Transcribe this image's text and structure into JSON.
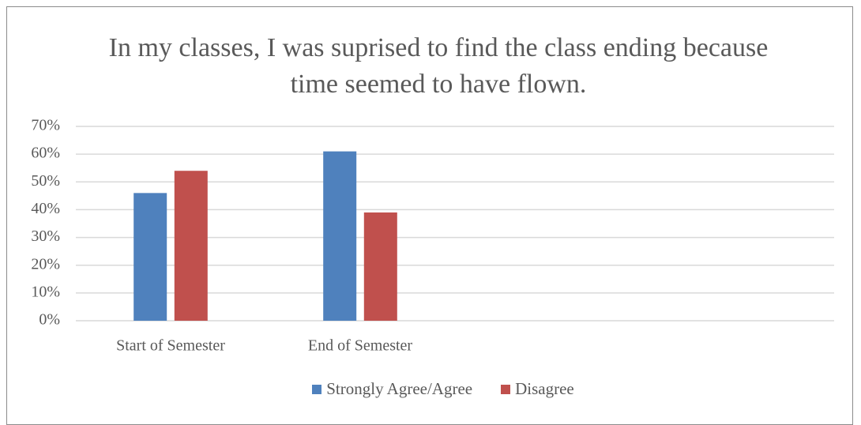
{
  "chart_data": {
    "type": "bar",
    "title": "In my classes, I was suprised to find the class ending because time seemed to have flown.",
    "categories": [
      "Start of Semester",
      "End of Semester",
      null,
      null
    ],
    "series": [
      {
        "name": "Strongly Agree/Agree",
        "color": "#4f81bd",
        "values": [
          46,
          61,
          null,
          null
        ]
      },
      {
        "name": "Disagree",
        "color": "#c0504d",
        "values": [
          54,
          39,
          null,
          null
        ]
      }
    ],
    "ylim": [
      0,
      70
    ],
    "yticks": [
      {
        "value": 0,
        "label": "0%"
      },
      {
        "value": 10,
        "label": "10%"
      },
      {
        "value": 20,
        "label": "20%"
      },
      {
        "value": 30,
        "label": "30%"
      },
      {
        "value": 40,
        "label": "40%"
      },
      {
        "value": 50,
        "label": "50%"
      },
      {
        "value": 60,
        "label": "60%"
      },
      {
        "value": 70,
        "label": "70%"
      }
    ],
    "grid": true,
    "legend": "bottom"
  }
}
